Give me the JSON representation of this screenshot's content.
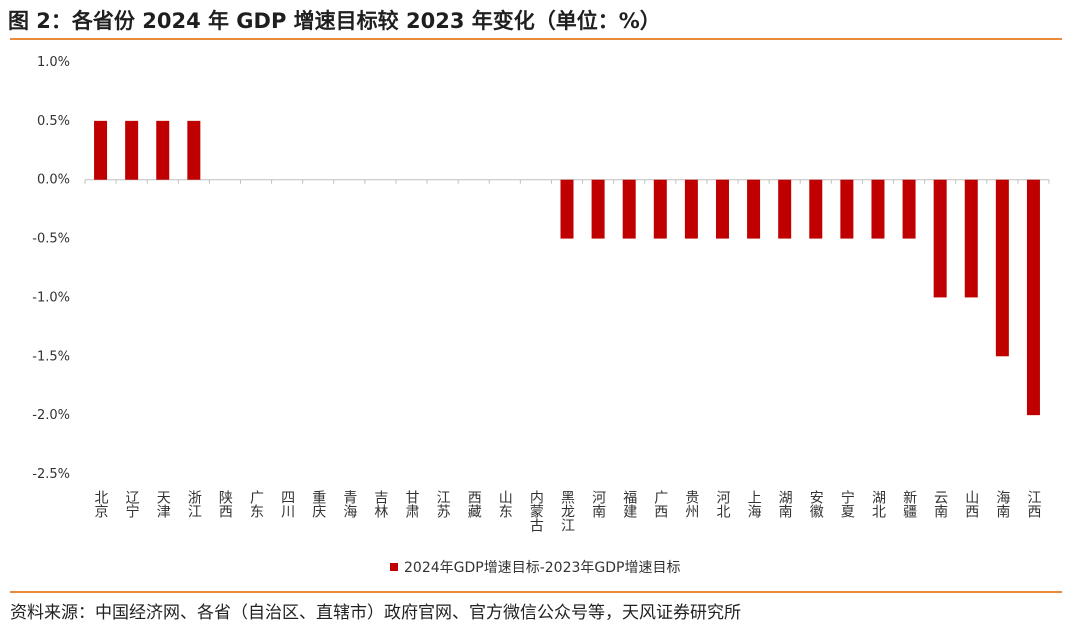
{
  "title": "图 2：各省份 2024 年 GDP 增速目标较 2023 年变化（单位：%）",
  "source": "资料来源：中国经济网、各省（自治区、直辖市）政府官网、官方微信公众号等，天风证券研究所",
  "colors": {
    "bar": "#c00000",
    "rule": "#e88a3a",
    "axis": "#bfbfbf"
  },
  "chart_data": {
    "type": "bar",
    "categories": [
      "北京",
      "辽宁",
      "天津",
      "浙江",
      "陕西",
      "广东",
      "四川",
      "重庆",
      "青海",
      "吉林",
      "甘肃",
      "江苏",
      "西藏",
      "山东",
      "内蒙古",
      "黑龙江",
      "河南",
      "福建",
      "广西",
      "贵州",
      "河北",
      "上海",
      "湖南",
      "安徽",
      "宁夏",
      "湖北",
      "新疆",
      "云南",
      "山西",
      "海南",
      "江西"
    ],
    "series": [
      {
        "name": "2024年GDP增速目标-2023年GDP增速目标",
        "values": [
          0.5,
          0.5,
          0.5,
          0.5,
          0,
          0,
          0,
          0,
          0,
          0,
          0,
          0,
          0,
          0,
          0,
          -0.5,
          -0.5,
          -0.5,
          -0.5,
          -0.5,
          -0.5,
          -0.5,
          -0.5,
          -0.5,
          -0.5,
          -0.5,
          -0.5,
          -1.0,
          -1.0,
          -1.5,
          -2.0
        ]
      }
    ],
    "yticks": [
      "1.0%",
      "0.5%",
      "0.0%",
      "-0.5%",
      "-1.0%",
      "-1.5%",
      "-2.0%",
      "-2.5%"
    ],
    "ylim": [
      -2.5,
      1.0
    ],
    "legend_position": "bottom-center",
    "grid": false
  }
}
